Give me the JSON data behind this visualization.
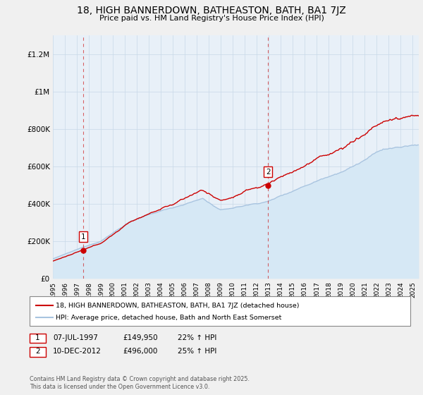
{
  "title": "18, HIGH BANNERDOWN, BATHEASTON, BATH, BA1 7JZ",
  "subtitle": "Price paid vs. HM Land Registry's House Price Index (HPI)",
  "ylim": [
    0,
    1300000
  ],
  "yticks": [
    0,
    200000,
    400000,
    600000,
    800000,
    1000000,
    1200000
  ],
  "ytick_labels": [
    "£0",
    "£200K",
    "£400K",
    "£600K",
    "£800K",
    "£1M",
    "£1.2M"
  ],
  "hpi_color": "#a8c4e0",
  "hpi_fill_color": "#d6e8f5",
  "price_color": "#cc0000",
  "background_color": "#f0f0f0",
  "plot_bg_color": "#e8f0f8",
  "grid_color": "#c8d8e8",
  "sale1_date": "07-JUL-1997",
  "sale1_price": 149950,
  "sale1_hpi": "22% ↑ HPI",
  "sale1_year": 1997.54,
  "sale2_date": "10-DEC-2012",
  "sale2_price": 496000,
  "sale2_hpi": "25% ↑ HPI",
  "sale2_year": 2012.94,
  "legend_line1": "18, HIGH BANNERDOWN, BATHEASTON, BATH, BA1 7JZ (detached house)",
  "legend_line2": "HPI: Average price, detached house, Bath and North East Somerset",
  "footnote": "Contains HM Land Registry data © Crown copyright and database right 2025.\nThis data is licensed under the Open Government Licence v3.0.",
  "xmin": 1995.0,
  "xmax": 2025.5
}
